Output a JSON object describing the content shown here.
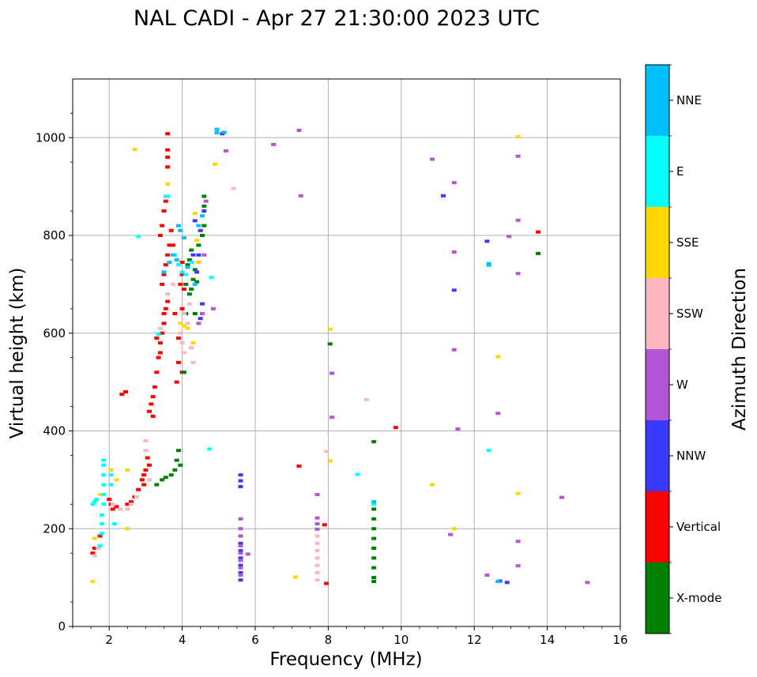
{
  "chart_data": {
    "type": "scatter",
    "title": "NAL CADI - Apr 27 21:30:00 2023 UTC",
    "xlabel": "Frequency (MHz)",
    "ylabel": "Virtual height (km)",
    "xlim": [
      1,
      16
    ],
    "ylim": [
      0,
      1120
    ],
    "xticks": [
      2,
      4,
      6,
      8,
      10,
      12,
      14,
      16
    ],
    "yticks": [
      0,
      200,
      400,
      600,
      800,
      1000
    ],
    "grid": true,
    "colorbar": {
      "label": "Azimuth Direction",
      "categories": [
        {
          "name": "X-mode",
          "color": "#008000"
        },
        {
          "name": "Vertical",
          "color": "#ff0000"
        },
        {
          "name": "NNW",
          "color": "#3a3aff"
        },
        {
          "name": "W",
          "color": "#b455d6"
        },
        {
          "name": "SSW",
          "color": "#ffb6c1"
        },
        {
          "name": "SSE",
          "color": "#ffd700"
        },
        {
          "name": "E",
          "color": "#00ffff"
        },
        {
          "name": "NNE",
          "color": "#00bfff"
        }
      ]
    },
    "series": [
      {
        "name": "Vertical",
        "points": [
          [
            1.55,
            150
          ],
          [
            1.6,
            160
          ],
          [
            1.75,
            185
          ],
          [
            2.0,
            260
          ],
          [
            2.05,
            250
          ],
          [
            2.1,
            240
          ],
          [
            2.2,
            245
          ],
          [
            2.3,
            240
          ],
          [
            2.35,
            475
          ],
          [
            2.45,
            480
          ],
          [
            2.5,
            250
          ],
          [
            2.6,
            255
          ],
          [
            2.7,
            265
          ],
          [
            2.8,
            280
          ],
          [
            2.9,
            300
          ],
          [
            2.95,
            310
          ],
          [
            3.0,
            320
          ],
          [
            3.05,
            345
          ],
          [
            3.1,
            440
          ],
          [
            3.15,
            455
          ],
          [
            3.2,
            470
          ],
          [
            3.25,
            490
          ],
          [
            3.3,
            520
          ],
          [
            3.35,
            550
          ],
          [
            3.4,
            580
          ],
          [
            3.45,
            600
          ],
          [
            3.5,
            620
          ],
          [
            3.55,
            650
          ],
          [
            3.6,
            665
          ],
          [
            3.45,
            700
          ],
          [
            3.5,
            720
          ],
          [
            3.55,
            740
          ],
          [
            3.6,
            760
          ],
          [
            3.65,
            780
          ],
          [
            3.4,
            800
          ],
          [
            3.45,
            820
          ],
          [
            3.5,
            850
          ],
          [
            3.55,
            870
          ],
          [
            3.6,
            940
          ],
          [
            3.6,
            960
          ],
          [
            3.6,
            975
          ],
          [
            3.6,
            1008
          ],
          [
            3.9,
            540
          ],
          [
            3.9,
            590
          ],
          [
            3.95,
            700
          ],
          [
            4.0,
            720
          ],
          [
            4.05,
            690
          ],
          [
            4.0,
            745
          ],
          [
            4.0,
            520
          ],
          [
            4.0,
            650
          ],
          [
            3.3,
            590
          ],
          [
            3.4,
            560
          ],
          [
            3.5,
            640
          ],
          [
            3.7,
            810
          ],
          [
            3.75,
            780
          ],
          [
            3.8,
            640
          ],
          [
            3.85,
            500
          ],
          [
            3.2,
            430
          ],
          [
            3.1,
            330
          ],
          [
            2.95,
            290
          ],
          [
            7.2,
            328
          ],
          [
            7.9,
            208
          ],
          [
            7.95,
            88
          ],
          [
            9.85,
            407
          ],
          [
            13.75,
            807
          ]
        ]
      },
      {
        "name": "X-mode",
        "points": [
          [
            3.3,
            290
          ],
          [
            3.45,
            300
          ],
          [
            3.55,
            305
          ],
          [
            3.7,
            310
          ],
          [
            3.8,
            320
          ],
          [
            3.85,
            340
          ],
          [
            3.9,
            360
          ],
          [
            3.95,
            330
          ],
          [
            4.05,
            520
          ],
          [
            4.1,
            640
          ],
          [
            4.2,
            680
          ],
          [
            4.25,
            690
          ],
          [
            4.3,
            710
          ],
          [
            4.15,
            740
          ],
          [
            4.2,
            750
          ],
          [
            4.25,
            770
          ],
          [
            4.35,
            640
          ],
          [
            4.4,
            705
          ],
          [
            4.45,
            780
          ],
          [
            4.55,
            800
          ],
          [
            4.6,
            820
          ],
          [
            4.6,
            860
          ],
          [
            4.6,
            880
          ],
          [
            4.35,
            730
          ],
          [
            4.1,
            700
          ],
          [
            8.05,
            578
          ],
          [
            9.25,
            378
          ],
          [
            9.25,
            240
          ],
          [
            9.25,
            220
          ],
          [
            9.25,
            200
          ],
          [
            9.25,
            180
          ],
          [
            9.25,
            160
          ],
          [
            9.25,
            140
          ],
          [
            9.25,
            120
          ],
          [
            9.25,
            100
          ],
          [
            9.25,
            92
          ],
          [
            13.75,
            763
          ]
        ]
      },
      {
        "name": "NNW",
        "points": [
          [
            4.35,
            830
          ],
          [
            4.45,
            760
          ],
          [
            4.5,
            810
          ],
          [
            4.55,
            660
          ],
          [
            4.5,
            630
          ],
          [
            4.6,
            850
          ],
          [
            4.4,
            725
          ],
          [
            4.3,
            760
          ],
          [
            5.1,
            1008
          ],
          [
            5.6,
            310
          ],
          [
            5.6,
            298
          ],
          [
            5.6,
            286
          ],
          [
            5.6,
            170
          ],
          [
            5.6,
            155
          ],
          [
            5.6,
            140
          ],
          [
            5.6,
            125
          ],
          [
            5.6,
            110
          ],
          [
            5.6,
            95
          ],
          [
            11.15,
            881
          ],
          [
            11.45,
            688
          ],
          [
            12.35,
            788
          ],
          [
            12.7,
            93
          ],
          [
            12.9,
            90
          ]
        ]
      },
      {
        "name": "W",
        "points": [
          [
            4.45,
            620
          ],
          [
            4.55,
            640
          ],
          [
            4.6,
            760
          ],
          [
            4.65,
            870
          ],
          [
            4.85,
            650
          ],
          [
            5.2,
            973
          ],
          [
            5.6,
            220
          ],
          [
            5.6,
            200
          ],
          [
            5.6,
            185
          ],
          [
            5.6,
            165
          ],
          [
            5.6,
            150
          ],
          [
            5.6,
            135
          ],
          [
            5.6,
            120
          ],
          [
            5.6,
            105
          ],
          [
            5.8,
            148
          ],
          [
            6.5,
            986
          ],
          [
            7.2,
            1015
          ],
          [
            7.25,
            881
          ],
          [
            7.7,
            270
          ],
          [
            7.7,
            222
          ],
          [
            7.7,
            210
          ],
          [
            7.7,
            199
          ],
          [
            8.1,
            518
          ],
          [
            8.1,
            428
          ],
          [
            10.85,
            956
          ],
          [
            11.35,
            188
          ],
          [
            11.45,
            908
          ],
          [
            11.45,
            766
          ],
          [
            11.45,
            566
          ],
          [
            11.55,
            404
          ],
          [
            12.35,
            105
          ],
          [
            12.65,
            436
          ],
          [
            12.95,
            798
          ],
          [
            13.2,
            962
          ],
          [
            13.2,
            831
          ],
          [
            13.2,
            722
          ],
          [
            13.2,
            174
          ],
          [
            13.2,
            124
          ],
          [
            14.4,
            264
          ],
          [
            15.1,
            90
          ]
        ]
      },
      {
        "name": "SSW",
        "points": [
          [
            1.6,
            145
          ],
          [
            1.7,
            160
          ],
          [
            2.1,
            250
          ],
          [
            2.3,
            240
          ],
          [
            2.5,
            240
          ],
          [
            2.6,
            250
          ],
          [
            2.75,
            265
          ],
          [
            3.0,
            380
          ],
          [
            3.0,
            360
          ],
          [
            3.1,
            300
          ],
          [
            3.4,
            610
          ],
          [
            3.6,
            680
          ],
          [
            3.95,
            600
          ],
          [
            4.0,
            580
          ],
          [
            4.05,
            560
          ],
          [
            4.15,
            620
          ],
          [
            4.25,
            570
          ],
          [
            4.3,
            540
          ],
          [
            4.05,
            640
          ],
          [
            4.2,
            660
          ],
          [
            3.75,
            700
          ],
          [
            5.4,
            896
          ],
          [
            7.7,
            185
          ],
          [
            7.7,
            170
          ],
          [
            7.7,
            155
          ],
          [
            7.7,
            140
          ],
          [
            7.7,
            125
          ],
          [
            7.7,
            110
          ],
          [
            7.7,
            95
          ],
          [
            7.95,
            358
          ],
          [
            9.05,
            464
          ]
        ]
      },
      {
        "name": "SSE",
        "points": [
          [
            1.55,
            92
          ],
          [
            1.6,
            180
          ],
          [
            1.75,
            270
          ],
          [
            2.05,
            320
          ],
          [
            2.2,
            300
          ],
          [
            2.5,
            320
          ],
          [
            2.5,
            200
          ],
          [
            2.7,
            976
          ],
          [
            3.6,
            905
          ],
          [
            3.95,
            620
          ],
          [
            4.05,
            615
          ],
          [
            4.15,
            610
          ],
          [
            4.3,
            580
          ],
          [
            4.35,
            845
          ],
          [
            4.4,
            790
          ],
          [
            4.45,
            745
          ],
          [
            4.9,
            946
          ],
          [
            7.1,
            101
          ],
          [
            8.05,
            608
          ],
          [
            8.05,
            339
          ],
          [
            10.85,
            290
          ],
          [
            11.45,
            200
          ],
          [
            12.65,
            552
          ],
          [
            13.2,
            1002
          ],
          [
            13.2,
            272
          ]
        ]
      },
      {
        "name": "E",
        "points": [
          [
            1.55,
            250
          ],
          [
            1.6,
            255
          ],
          [
            1.65,
            260
          ],
          [
            1.75,
            165
          ],
          [
            1.8,
            190
          ],
          [
            1.8,
            210
          ],
          [
            1.8,
            228
          ],
          [
            1.85,
            250
          ],
          [
            1.85,
            270
          ],
          [
            1.85,
            290
          ],
          [
            1.85,
            310
          ],
          [
            1.85,
            330
          ],
          [
            1.85,
            340
          ],
          [
            2.05,
            310
          ],
          [
            2.05,
            290
          ],
          [
            2.15,
            210
          ],
          [
            2.8,
            798
          ],
          [
            3.35,
            598
          ],
          [
            3.55,
            880
          ],
          [
            3.6,
            880
          ],
          [
            3.8,
            760
          ],
          [
            3.9,
            740
          ],
          [
            4.0,
            725
          ],
          [
            4.1,
            720
          ],
          [
            4.25,
            745
          ],
          [
            4.8,
            714
          ],
          [
            4.75,
            363
          ],
          [
            8.8,
            311
          ],
          [
            9.25,
            250
          ],
          [
            12.4,
            360
          ]
        ]
      },
      {
        "name": "NNE",
        "points": [
          [
            3.5,
            725
          ],
          [
            3.65,
            745
          ],
          [
            3.75,
            760
          ],
          [
            3.85,
            750
          ],
          [
            3.9,
            820
          ],
          [
            3.95,
            810
          ],
          [
            4.05,
            795
          ],
          [
            4.15,
            735
          ],
          [
            4.35,
            700
          ],
          [
            4.45,
            820
          ],
          [
            4.55,
            840
          ],
          [
            4.95,
            1017
          ],
          [
            4.95,
            1010
          ],
          [
            5.15,
            1011
          ],
          [
            9.25,
            255
          ],
          [
            12.4,
            742
          ],
          [
            12.4,
            739
          ],
          [
            12.65,
            92
          ]
        ]
      }
    ]
  }
}
